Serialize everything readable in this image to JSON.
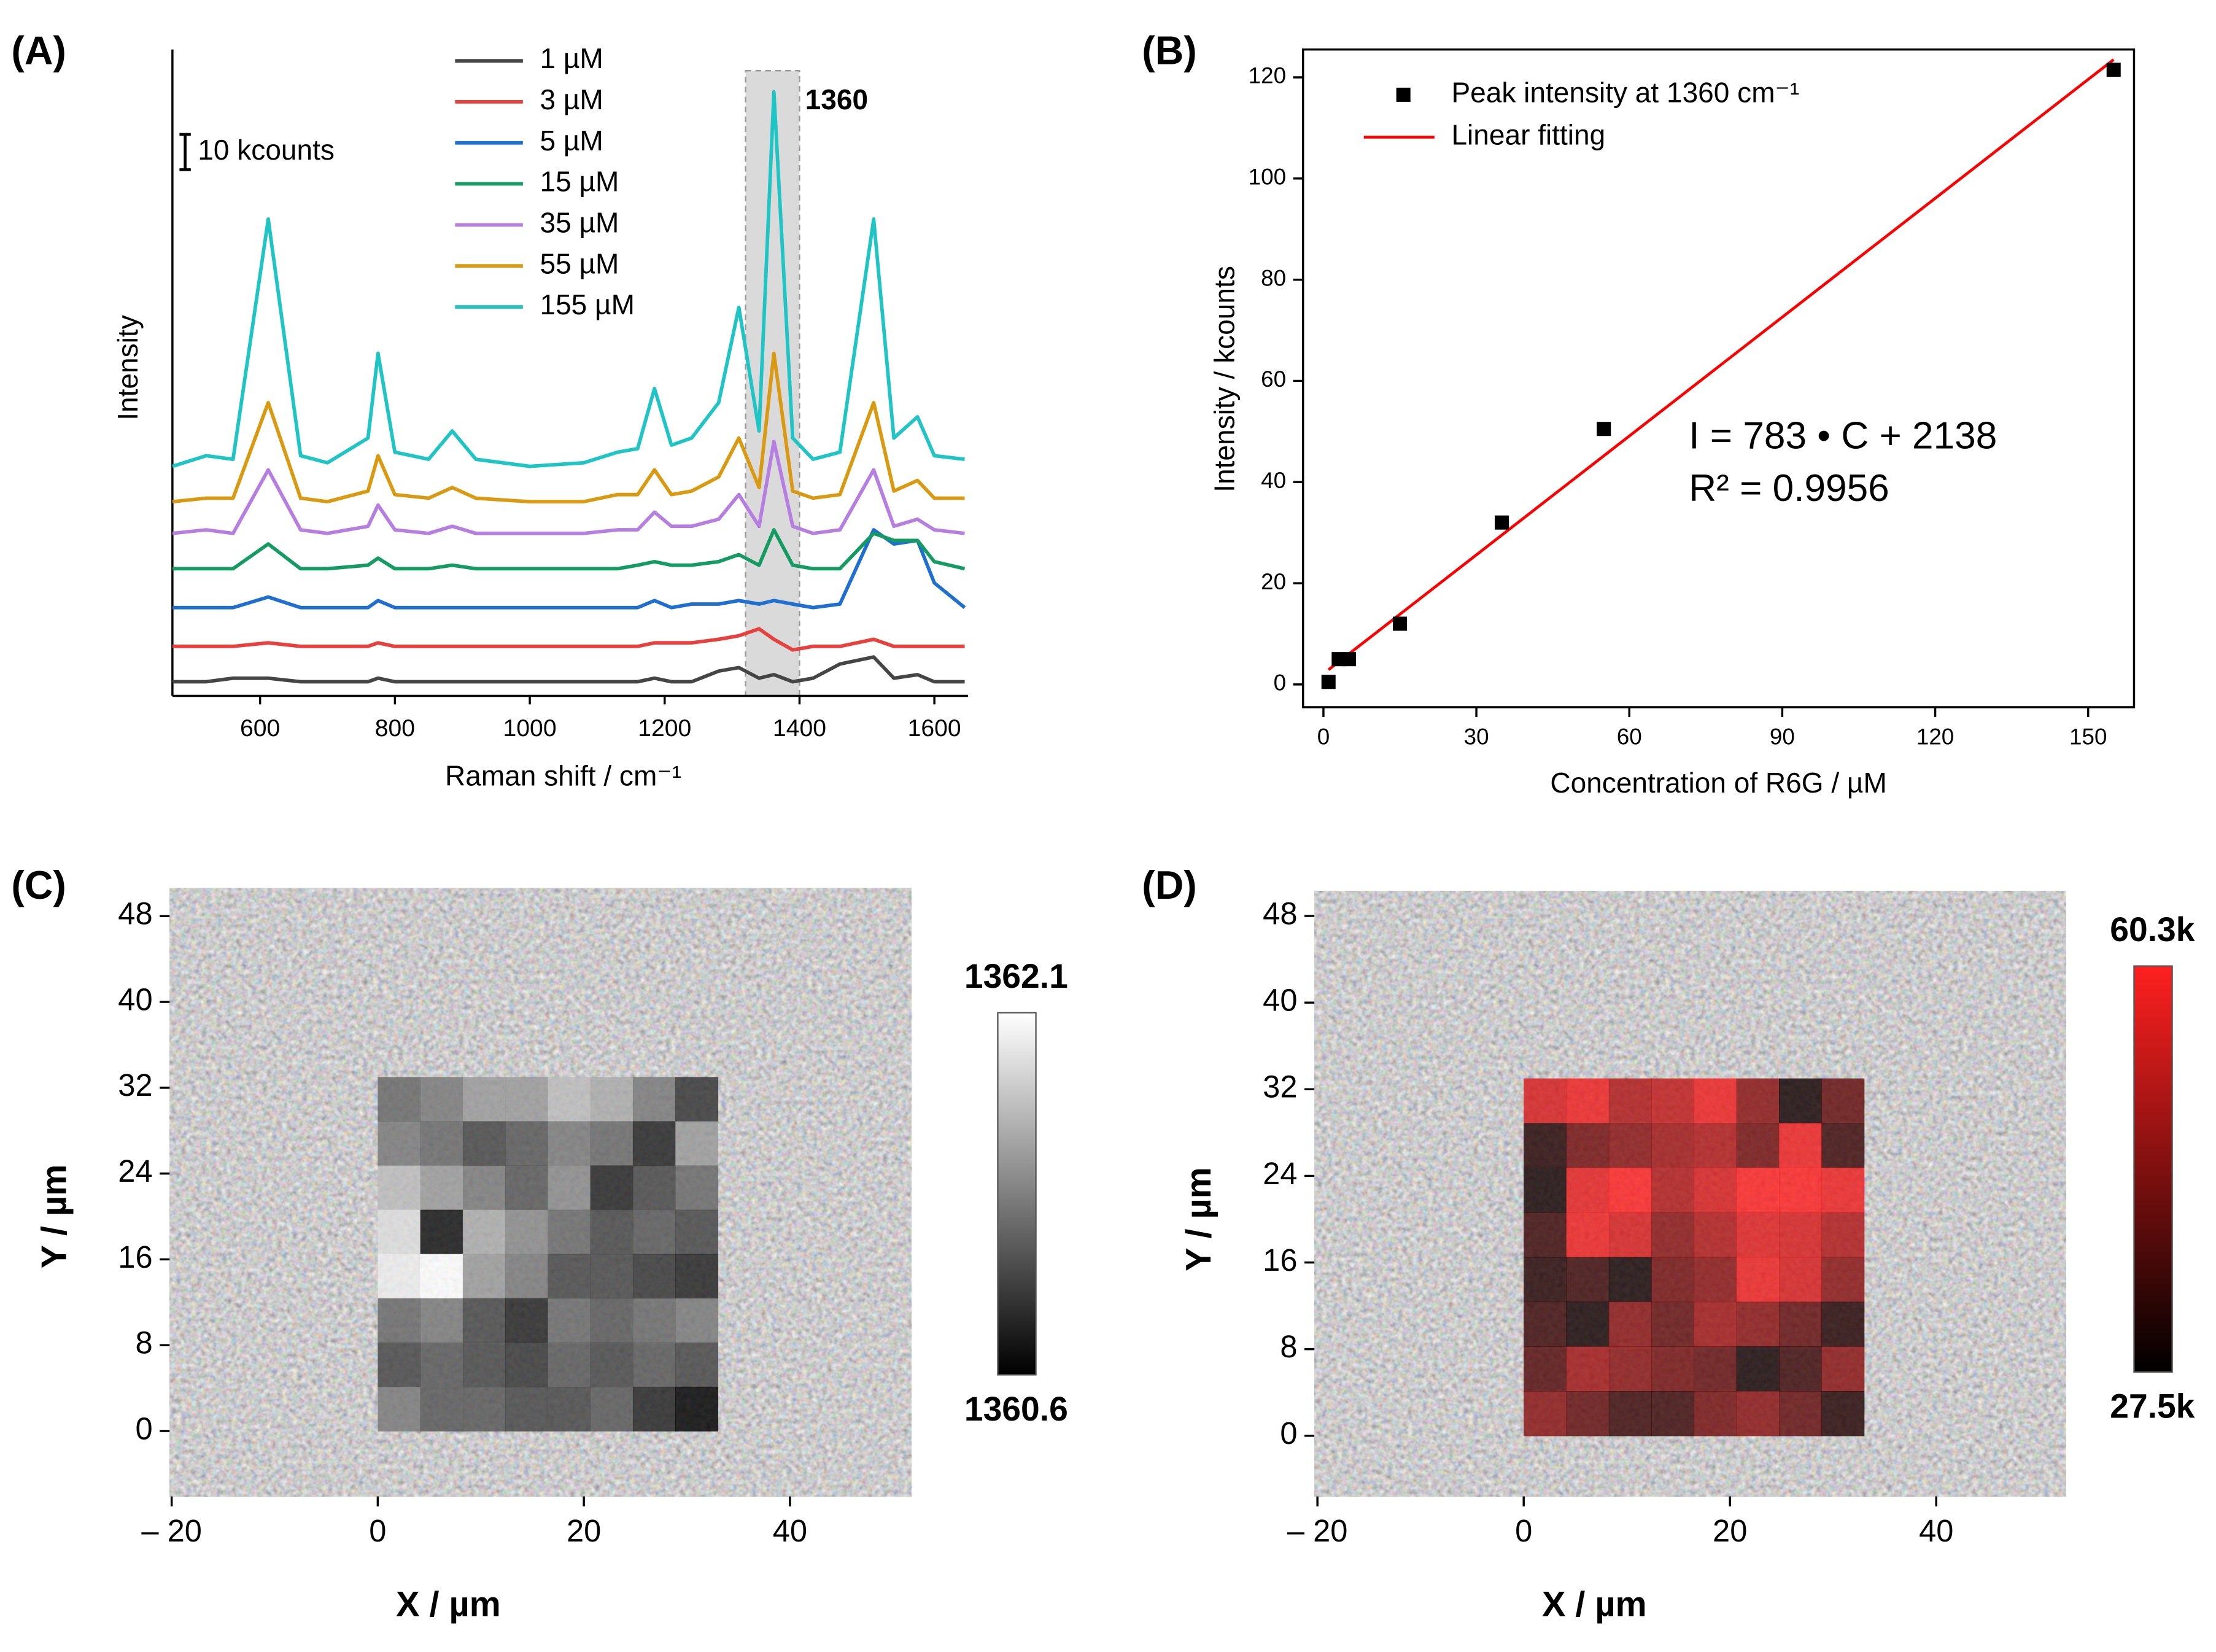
{
  "chart_data": [
    {
      "type": "line",
      "title": "(A)",
      "xlabel": "Raman shift / cm⁻¹",
      "ylabel": "Intensity",
      "x": [
        470,
        520,
        560,
        612,
        660,
        700,
        760,
        775,
        800,
        850,
        885,
        920,
        1000,
        1080,
        1130,
        1160,
        1185,
        1210,
        1240,
        1280,
        1310,
        1340,
        1362,
        1390,
        1420,
        1460,
        1510,
        1540,
        1575,
        1600,
        1645
      ],
      "xlim": [
        470,
        1650
      ],
      "xticks": [
        600,
        800,
        1000,
        1200,
        1400,
        1600
      ],
      "ylim": [
        0,
        183
      ],
      "scale_bar": {
        "value": 10,
        "label": "10 kcounts"
      },
      "highlight": {
        "range": [
          1320,
          1400
        ],
        "label": "1360"
      },
      "series": [
        {
          "name": "1 µM",
          "color": "#454545",
          "values": [
            4,
            4,
            5,
            5,
            4,
            4,
            4,
            5,
            4,
            4,
            4,
            4,
            4,
            4,
            4,
            4,
            5,
            4,
            4,
            7,
            8,
            5,
            6,
            4,
            5,
            9,
            11,
            5,
            6,
            4,
            4
          ]
        },
        {
          "name": "3 µM",
          "color": "#e8403c",
          "values": [
            14,
            14,
            14,
            15,
            14,
            14,
            14,
            15,
            14,
            14,
            14,
            14,
            14,
            14,
            14,
            14,
            15,
            15,
            15,
            16,
            17,
            19,
            16,
            13,
            14,
            14,
            16,
            14,
            14,
            14,
            14
          ]
        },
        {
          "name": "5 µM",
          "color": "#1f6fd0",
          "values": [
            25,
            25,
            25,
            28,
            25,
            25,
            25,
            27,
            25,
            25,
            25,
            25,
            25,
            25,
            25,
            25,
            27,
            25,
            26,
            26,
            27,
            26,
            27,
            26,
            25,
            26,
            47,
            43,
            44,
            32,
            25
          ]
        },
        {
          "name": "15 µM",
          "color": "#139b62",
          "values": [
            36,
            36,
            36,
            43,
            36,
            36,
            37,
            39,
            36,
            36,
            37,
            36,
            36,
            36,
            36,
            37,
            38,
            37,
            37,
            38,
            40,
            37,
            47,
            37,
            36,
            36,
            46,
            44,
            44,
            38,
            36
          ]
        },
        {
          "name": "35 µM",
          "color": "#b57ee0",
          "values": [
            46,
            47,
            46,
            64,
            47,
            46,
            48,
            54,
            47,
            46,
            48,
            46,
            46,
            46,
            47,
            47,
            52,
            48,
            48,
            50,
            57,
            48,
            72,
            48,
            46,
            47,
            64,
            48,
            50,
            47,
            46
          ]
        },
        {
          "name": "55 µM",
          "color": "#d99a12",
          "values": [
            55,
            56,
            56,
            83,
            56,
            55,
            58,
            68,
            57,
            56,
            59,
            56,
            55,
            55,
            57,
            57,
            64,
            57,
            58,
            62,
            73,
            59,
            97,
            58,
            56,
            57,
            83,
            58,
            61,
            56,
            56
          ]
        },
        {
          "name": "155 µM",
          "color": "#1fc4c4",
          "values": [
            65,
            68,
            67,
            135,
            68,
            66,
            73,
            97,
            69,
            67,
            75,
            67,
            65,
            66,
            69,
            70,
            87,
            71,
            73,
            83,
            110,
            75,
            171,
            73,
            67,
            69,
            135,
            73,
            79,
            68,
            67
          ]
        }
      ]
    },
    {
      "type": "scatter",
      "title": "(B)",
      "xlabel": "Concentration of R6G / µM",
      "ylabel": "Intensity / kcounts",
      "xlim": [
        -4,
        159
      ],
      "xticks": [
        0,
        30,
        60,
        90,
        120,
        150
      ],
      "ylim": [
        -4.5,
        125.5
      ],
      "yticks": [
        0,
        20,
        40,
        60,
        80,
        100,
        120
      ],
      "series": [
        {
          "name": "Peak intensity at 1360 cm⁻¹",
          "color": "#000000",
          "x": [
            1,
            3,
            5,
            15,
            35,
            55,
            155
          ],
          "values": [
            0.5,
            5,
            5,
            12,
            32,
            50.5,
            121.5
          ]
        }
      ],
      "fit": {
        "name": "Linear fitting",
        "color": "#ff0000",
        "x": [
          1,
          155
        ],
        "values": [
          2.9,
          123.5
        ]
      },
      "annotations": [
        "I = 783 • C + 2138",
        "R² = 0.9956"
      ]
    },
    {
      "type": "heatmap",
      "title": "(C)",
      "xlabel": "X / µm",
      "ylabel": "Y / µm",
      "xlim": [
        -20.2,
        51.8
      ],
      "xticks": [
        {
          "value": -20,
          "label": "– 20"
        },
        0,
        20,
        40
      ],
      "ylim": [
        -6.1,
        50.6
      ],
      "yticks": [
        0,
        8,
        16,
        24,
        32,
        40,
        48
      ],
      "extent": [
        0,
        33,
        0,
        33
      ],
      "colors": [
        "#000000",
        "#ffffff"
      ],
      "colorbar": [
        1360.6,
        1362.1
      ],
      "values": [
        [
          1361.2,
          1361.3,
          1361.5,
          1361.5,
          1361.7,
          1361.6,
          1361.3,
          1360.9
        ],
        [
          1361.3,
          1361.2,
          1361.0,
          1361.1,
          1361.3,
          1361.2,
          1360.8,
          1361.5
        ],
        [
          1361.7,
          1361.5,
          1361.3,
          1361.1,
          1361.4,
          1360.8,
          1361.0,
          1361.2
        ],
        [
          1361.9,
          1360.7,
          1361.6,
          1361.4,
          1361.2,
          1361.0,
          1361.1,
          1361.0
        ],
        [
          1362.0,
          1362.1,
          1361.5,
          1361.3,
          1361.0,
          1361.0,
          1360.9,
          1360.8
        ],
        [
          1361.2,
          1361.3,
          1361.0,
          1360.8,
          1361.2,
          1361.1,
          1361.2,
          1361.3
        ],
        [
          1361.0,
          1361.1,
          1361.0,
          1360.9,
          1361.1,
          1361.0,
          1361.1,
          1361.0
        ],
        [
          1361.3,
          1361.1,
          1361.1,
          1361.0,
          1361.0,
          1361.1,
          1360.8,
          1360.6
        ]
      ]
    },
    {
      "type": "heatmap",
      "title": "(D)",
      "xlabel": "X / µm",
      "ylabel": "Y / µm",
      "xlim": [
        -20.3,
        52.6
      ],
      "xticks": [
        {
          "value": -20,
          "label": "– 20"
        },
        0,
        20,
        40
      ],
      "ylim": [
        -5.6,
        50.3
      ],
      "yticks": [
        0,
        8,
        16,
        24,
        32,
        40,
        48
      ],
      "extent": [
        0,
        33,
        0,
        33
      ],
      "colors": [
        "#000000",
        "#ff2020"
      ],
      "colorbar": [
        {
          "value": 27.5,
          "label": "27.5k"
        },
        {
          "value": 60.3,
          "label": "60.3k"
        }
      ],
      "values": [
        [
          55,
          58,
          50,
          52,
          58,
          45,
          30,
          40
        ],
        [
          32,
          42,
          45,
          48,
          50,
          42,
          58,
          35
        ],
        [
          30,
          57,
          60,
          50,
          55,
          60,
          60,
          58
        ],
        [
          35,
          58,
          55,
          45,
          50,
          56,
          55,
          50
        ],
        [
          32,
          35,
          30,
          42,
          45,
          58,
          55,
          45
        ],
        [
          35,
          30,
          45,
          40,
          48,
          45,
          40,
          32
        ],
        [
          38,
          48,
          45,
          42,
          40,
          30,
          35,
          45
        ],
        [
          45,
          40,
          35,
          35,
          42,
          45,
          40,
          32
        ]
      ]
    }
  ]
}
